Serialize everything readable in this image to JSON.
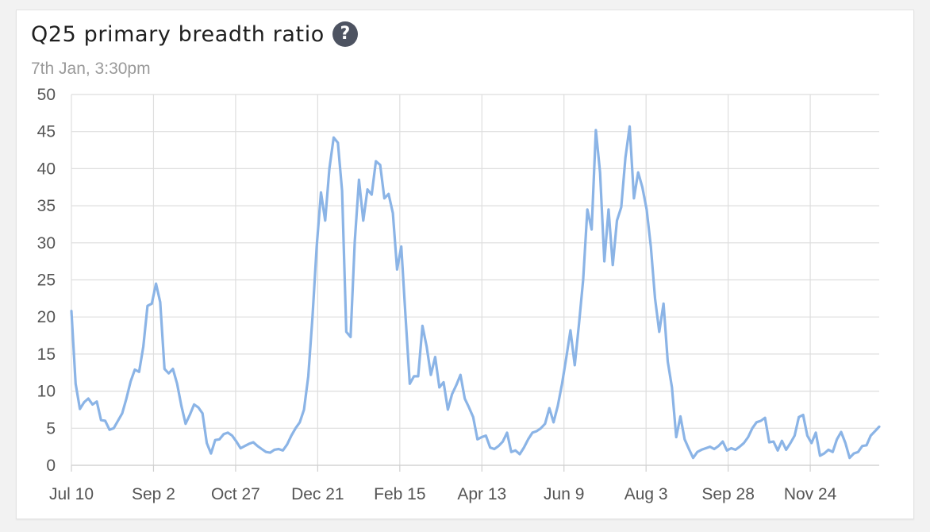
{
  "header": {
    "title": "Q25 primary breadth ratio",
    "subtitle": "7th Jan, 3:30pm",
    "help_icon": "question-circle-icon"
  },
  "colors": {
    "line": "#8bb4e6",
    "grid": "#dedede",
    "help_bg": "#4d5361"
  },
  "chart_data": {
    "type": "line",
    "title": "Q25 primary breadth ratio",
    "xlabel": "",
    "ylabel": "",
    "ylim": [
      0,
      50
    ],
    "yticks": [
      0,
      5,
      10,
      15,
      20,
      25,
      30,
      35,
      40,
      45,
      50
    ],
    "xtick_labels": [
      "Jul 10",
      "Sep 2",
      "Oct 27",
      "Dec 21",
      "Feb 15",
      "Apr 13",
      "Jun 9",
      "Aug 3",
      "Sep 28",
      "Nov 24"
    ],
    "grid": true,
    "legend": "none",
    "series": [
      {
        "points": [
          [
            0,
            20.8
          ],
          [
            1,
            11
          ],
          [
            2,
            7.6
          ],
          [
            3,
            8.5
          ],
          [
            4,
            9
          ],
          [
            5,
            8.2
          ],
          [
            6,
            8.6
          ],
          [
            7,
            6.1
          ],
          [
            8,
            6
          ],
          [
            9,
            4.8
          ],
          [
            10,
            5
          ],
          [
            11,
            6
          ],
          [
            12,
            7
          ],
          [
            13,
            9
          ],
          [
            14,
            11.3
          ],
          [
            15,
            12.9
          ],
          [
            16,
            12.6
          ],
          [
            17,
            16
          ],
          [
            18,
            21.5
          ],
          [
            19,
            21.8
          ],
          [
            20,
            24.5
          ],
          [
            21,
            22
          ],
          [
            22,
            13
          ],
          [
            23,
            12.4
          ],
          [
            24,
            13
          ],
          [
            25,
            11
          ],
          [
            26,
            8
          ],
          [
            27,
            5.6
          ],
          [
            28,
            6.8
          ],
          [
            29,
            8.2
          ],
          [
            30,
            7.8
          ],
          [
            31,
            7
          ],
          [
            32,
            3
          ],
          [
            33,
            1.6
          ],
          [
            34,
            3.4
          ],
          [
            35,
            3.5
          ],
          [
            36,
            4.2
          ],
          [
            37,
            4.4
          ],
          [
            38,
            4
          ],
          [
            39,
            3.2
          ],
          [
            40,
            2.3
          ],
          [
            41,
            2.6
          ],
          [
            42,
            2.9
          ],
          [
            43,
            3.1
          ],
          [
            44,
            2.6
          ],
          [
            45,
            2.2
          ],
          [
            46,
            1.8
          ],
          [
            47,
            1.7
          ],
          [
            48,
            2.1
          ],
          [
            49,
            2.2
          ],
          [
            50,
            2
          ],
          [
            51,
            2.8
          ],
          [
            52,
            4
          ],
          [
            53,
            5
          ],
          [
            54,
            5.8
          ],
          [
            55,
            7.5
          ],
          [
            56,
            12
          ],
          [
            57,
            20
          ],
          [
            58,
            29.5
          ],
          [
            59,
            36.8
          ],
          [
            60,
            33
          ],
          [
            61,
            40
          ],
          [
            62,
            44.2
          ],
          [
            63,
            43.5
          ],
          [
            64,
            37
          ],
          [
            65,
            18
          ],
          [
            66,
            17.3
          ],
          [
            67,
            30.2
          ],
          [
            68,
            38.5
          ],
          [
            69,
            33
          ],
          [
            70,
            37.2
          ],
          [
            71,
            36.5
          ],
          [
            72,
            41
          ],
          [
            73,
            40.5
          ],
          [
            74,
            36
          ],
          [
            75,
            36.6
          ],
          [
            76,
            34
          ],
          [
            77,
            26.4
          ],
          [
            78,
            29.5
          ],
          [
            79,
            20
          ],
          [
            80,
            11
          ],
          [
            81,
            12
          ],
          [
            82,
            12
          ],
          [
            83,
            18.8
          ],
          [
            84,
            16
          ],
          [
            85,
            12.2
          ],
          [
            86,
            14.6
          ],
          [
            87,
            10.5
          ],
          [
            88,
            11.2
          ],
          [
            89,
            7.5
          ],
          [
            90,
            9.6
          ],
          [
            91,
            10.8
          ],
          [
            92,
            12.2
          ],
          [
            93,
            9
          ],
          [
            94,
            7.8
          ],
          [
            95,
            6.5
          ],
          [
            96,
            3.5
          ],
          [
            97,
            3.8
          ],
          [
            98,
            4
          ],
          [
            99,
            2.4
          ],
          [
            100,
            2.2
          ],
          [
            101,
            2.6
          ],
          [
            102,
            3.2
          ],
          [
            103,
            4.4
          ],
          [
            104,
            1.8
          ],
          [
            105,
            2
          ],
          [
            106,
            1.5
          ],
          [
            107,
            2.4
          ],
          [
            108,
            3.5
          ],
          [
            109,
            4.4
          ],
          [
            110,
            4.6
          ],
          [
            111,
            5
          ],
          [
            112,
            5.6
          ],
          [
            113,
            7.7
          ],
          [
            114,
            5.8
          ],
          [
            115,
            8
          ],
          [
            116,
            11
          ],
          [
            117,
            14.5
          ],
          [
            118,
            18.2
          ],
          [
            119,
            13.5
          ],
          [
            120,
            19
          ],
          [
            121,
            25
          ],
          [
            122,
            34.5
          ],
          [
            123,
            31.8
          ],
          [
            124,
            45.2
          ],
          [
            125,
            39.5
          ],
          [
            126,
            27.5
          ],
          [
            127,
            34.5
          ],
          [
            128,
            27
          ],
          [
            129,
            33
          ],
          [
            130,
            34.8
          ],
          [
            131,
            41.5
          ],
          [
            132,
            45.7
          ],
          [
            133,
            36
          ],
          [
            134,
            39.5
          ],
          [
            135,
            37.5
          ],
          [
            136,
            34.5
          ],
          [
            137,
            29.5
          ],
          [
            138,
            22.5
          ],
          [
            139,
            18
          ],
          [
            140,
            21.8
          ],
          [
            141,
            14
          ],
          [
            142,
            10.5
          ],
          [
            143,
            3.8
          ],
          [
            144,
            6.6
          ],
          [
            145,
            3.5
          ],
          [
            146,
            2.2
          ],
          [
            147,
            1
          ],
          [
            148,
            1.8
          ],
          [
            149,
            2.1
          ],
          [
            150,
            2.3
          ],
          [
            151,
            2.5
          ],
          [
            152,
            2.2
          ],
          [
            153,
            2.6
          ],
          [
            154,
            3.2
          ],
          [
            155,
            2
          ],
          [
            156,
            2.3
          ],
          [
            157,
            2.1
          ],
          [
            158,
            2.5
          ],
          [
            159,
            3
          ],
          [
            160,
            3.8
          ],
          [
            161,
            5
          ],
          [
            162,
            5.8
          ],
          [
            163,
            6
          ],
          [
            164,
            6.4
          ],
          [
            165,
            3.1
          ],
          [
            166,
            3.2
          ],
          [
            167,
            2
          ],
          [
            168,
            3.3
          ],
          [
            169,
            2.1
          ],
          [
            170,
            3
          ],
          [
            171,
            4
          ],
          [
            172,
            6.5
          ],
          [
            173,
            6.8
          ],
          [
            174,
            4
          ],
          [
            175,
            3
          ],
          [
            176,
            4.4
          ],
          [
            177,
            1.3
          ],
          [
            178,
            1.6
          ],
          [
            179,
            2.1
          ],
          [
            180,
            1.8
          ],
          [
            181,
            3.5
          ],
          [
            182,
            4.5
          ],
          [
            183,
            3
          ],
          [
            184,
            1
          ],
          [
            185,
            1.6
          ],
          [
            186,
            1.8
          ],
          [
            187,
            2.6
          ],
          [
            188,
            2.7
          ],
          [
            189,
            4
          ],
          [
            190,
            4.6
          ],
          [
            191,
            5.2
          ]
        ]
      }
    ]
  }
}
